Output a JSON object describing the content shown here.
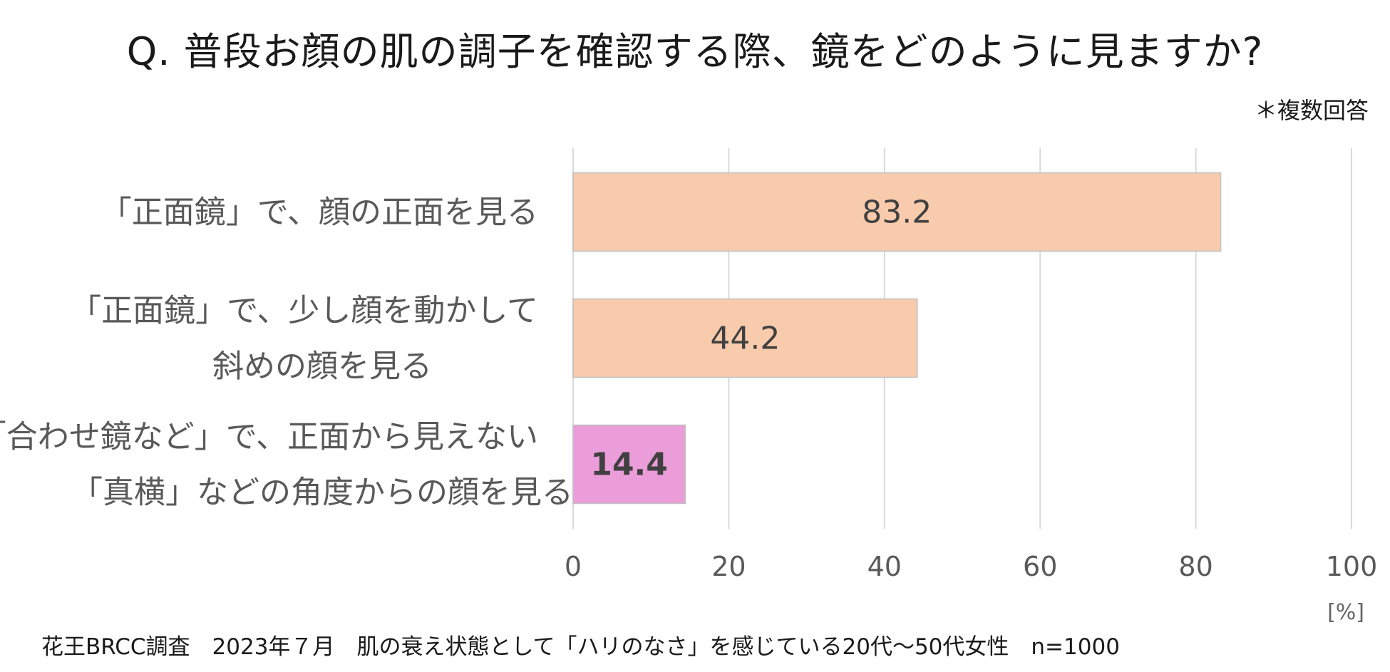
{
  "chart_data": {
    "type": "bar",
    "orientation": "horizontal",
    "title": "Q. 普段お顔の肌の調子を確認する際、鏡をどのように見ますか?",
    "note": "＊複数回答",
    "categories": [
      [
        "「正面鏡」で、顔の正面を見る"
      ],
      [
        "「正面鏡」で、少し顔を動かして",
        "斜めの顔を見る"
      ],
      [
        "「合わせ鏡など」で、正面から見えない",
        "「真横」などの角度からの顔を見る"
      ]
    ],
    "values": [
      83.2,
      44.2,
      14.4
    ],
    "value_labels": [
      "83.2",
      "44.2",
      "14.4"
    ],
    "value_label_bold": [
      false,
      false,
      true
    ],
    "bar_colors": [
      "#F8CBAD",
      "#F8CBAD",
      "#EB9DD9"
    ],
    "xlim": [
      0,
      100
    ],
    "xticks": [
      0,
      20,
      40,
      60,
      80,
      100
    ],
    "xtick_labels": [
      "0",
      "20",
      "40",
      "60",
      "80",
      "100"
    ],
    "unit": "[%]",
    "grid": true,
    "source": "花王BRCC調査　2023年７月　肌の衰え状態として「ハリのなさ」を感じている20代～50代女性　n=1000"
  }
}
